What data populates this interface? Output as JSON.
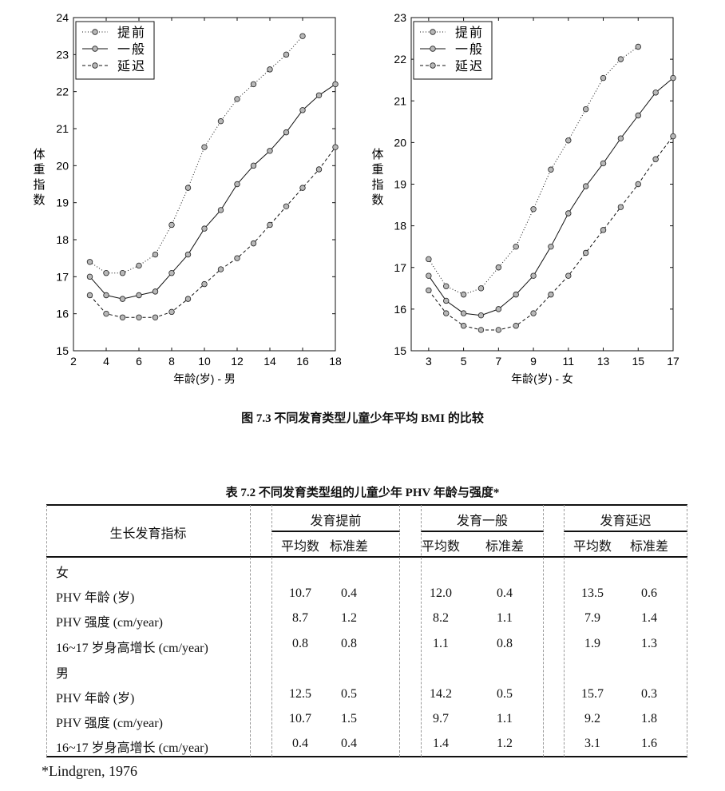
{
  "chart_data": [
    {
      "type": "line",
      "title": "",
      "xlabel": "年龄(岁)  -  男",
      "ylabel": "体重指数",
      "xlim": [
        2,
        18
      ],
      "ylim": [
        15,
        24
      ],
      "xticks": [
        2,
        4,
        6,
        8,
        10,
        12,
        14,
        16,
        18
      ],
      "yticks": [
        15,
        16,
        17,
        18,
        19,
        20,
        21,
        22,
        23,
        24
      ],
      "legend_position": "top-left",
      "series": [
        {
          "name": "提前",
          "style": "dotted",
          "x": [
            3,
            4,
            5,
            6,
            7,
            8,
            9,
            10,
            11,
            12,
            13,
            14,
            15,
            16
          ],
          "values": [
            17.4,
            17.1,
            17.1,
            17.3,
            17.6,
            18.4,
            19.4,
            20.5,
            21.2,
            21.8,
            22.2,
            22.6,
            23.0,
            23.5
          ]
        },
        {
          "name": "一般",
          "style": "solid",
          "x": [
            3,
            4,
            5,
            6,
            7,
            8,
            9,
            10,
            11,
            12,
            13,
            14,
            15,
            16,
            17,
            18
          ],
          "values": [
            17.0,
            16.5,
            16.4,
            16.5,
            16.6,
            17.1,
            17.6,
            18.3,
            18.8,
            19.5,
            20.0,
            20.4,
            20.9,
            21.5,
            21.9,
            22.2
          ]
        },
        {
          "name": "延迟",
          "style": "dashed",
          "x": [
            3,
            4,
            5,
            6,
            7,
            8,
            9,
            10,
            11,
            12,
            13,
            14,
            15,
            16,
            17,
            18
          ],
          "values": [
            16.5,
            16.0,
            15.9,
            15.9,
            15.9,
            16.05,
            16.4,
            16.8,
            17.2,
            17.5,
            17.9,
            18.4,
            18.9,
            19.4,
            19.9,
            20.5
          ]
        }
      ]
    },
    {
      "type": "line",
      "title": "",
      "xlabel": "年龄(岁)  -  女",
      "ylabel": "体重指数",
      "xlim": [
        2,
        17
      ],
      "ylim": [
        15,
        23
      ],
      "xticks": [
        3,
        5,
        7,
        9,
        11,
        13,
        15,
        17
      ],
      "yticks": [
        15,
        16,
        17,
        18,
        19,
        20,
        21,
        22,
        23
      ],
      "legend_position": "top-left",
      "series": [
        {
          "name": "提前",
          "style": "dotted",
          "x": [
            3,
            4,
            5,
            6,
            7,
            8,
            9,
            10,
            11,
            12,
            13,
            14,
            15
          ],
          "values": [
            17.2,
            16.55,
            16.35,
            16.5,
            17.0,
            17.5,
            18.4,
            19.35,
            20.05,
            20.8,
            21.55,
            22.0,
            22.3
          ]
        },
        {
          "name": "一般",
          "style": "solid",
          "x": [
            3,
            4,
            5,
            6,
            7,
            8,
            9,
            10,
            11,
            12,
            13,
            14,
            15,
            16,
            17
          ],
          "values": [
            16.8,
            16.2,
            15.9,
            15.85,
            16.0,
            16.35,
            16.8,
            17.5,
            18.3,
            18.95,
            19.5,
            20.1,
            20.65,
            21.2,
            21.55
          ]
        },
        {
          "name": "延迟",
          "style": "dashed",
          "x": [
            3,
            4,
            5,
            6,
            7,
            8,
            9,
            10,
            11,
            12,
            13,
            14,
            15,
            16,
            17
          ],
          "values": [
            16.45,
            15.9,
            15.6,
            15.5,
            15.5,
            15.6,
            15.9,
            16.35,
            16.8,
            17.35,
            17.9,
            18.45,
            19.0,
            19.6,
            20.15
          ]
        }
      ]
    }
  ],
  "figure_caption": "图 7.3  不同发育类型儿童少年平均 BMI 的比较",
  "table": {
    "title": "表 7.2  不同发育类型组的儿童少年  PHV 年龄与强度*",
    "row_header": "生长发育指标",
    "groups": [
      "发育提前",
      "发育一般",
      "发育延迟"
    ],
    "subheaders": [
      "平均数",
      "标准差"
    ],
    "rows": [
      {
        "label": "女",
        "values": []
      },
      {
        "label": "PHV 年龄 (岁)",
        "values": [
          "10.7",
          "0.4",
          "12.0",
          "0.4",
          "13.5",
          "0.6"
        ]
      },
      {
        "label": "PHV 强度 (cm/year)",
        "values": [
          "8.7",
          "1.2",
          "8.2",
          "1.1",
          "7.9",
          "1.4"
        ]
      },
      {
        "label": "16~17 岁身高增长 (cm/year)",
        "values": [
          "0.8",
          "0.8",
          "1.1",
          "0.8",
          "1.9",
          "1.3"
        ]
      },
      {
        "label": "男",
        "values": []
      },
      {
        "label": "PHV 年龄 (岁)",
        "values": [
          "12.5",
          "0.5",
          "14.2",
          "0.5",
          "15.7",
          "0.3"
        ]
      },
      {
        "label": "PHV 强度 (cm/year)",
        "values": [
          "10.7",
          "1.5",
          "9.7",
          "1.1",
          "9.2",
          "1.8"
        ]
      },
      {
        "label": "16~17 岁身高增长 (cm/year)",
        "values": [
          "0.4",
          "0.4",
          "1.4",
          "1.2",
          "3.1",
          "1.6"
        ]
      }
    ],
    "footnote": "*Lindgren, 1976"
  }
}
